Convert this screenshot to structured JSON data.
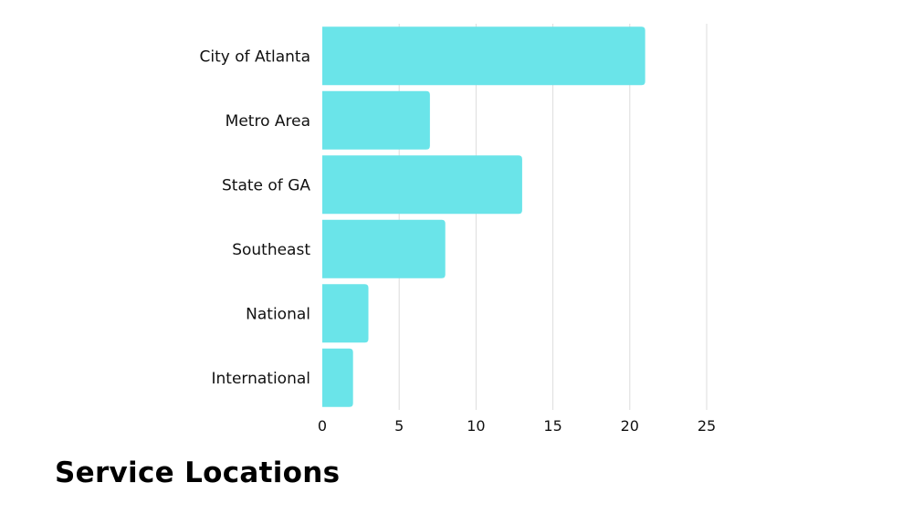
{
  "chart_data": {
    "type": "bar",
    "orientation": "horizontal",
    "title": "Service Locations",
    "categories": [
      "City of Atlanta",
      "Metro Area",
      "State of GA",
      "Southeast",
      "National",
      "International"
    ],
    "values": [
      21,
      7,
      13,
      8,
      3,
      2
    ],
    "xlim": [
      0,
      25
    ],
    "x_ticks": [
      0,
      5,
      10,
      15,
      20,
      25
    ],
    "xlabel": "",
    "ylabel": "",
    "grid": "vertical",
    "bar_color": "#6ae4e9"
  }
}
